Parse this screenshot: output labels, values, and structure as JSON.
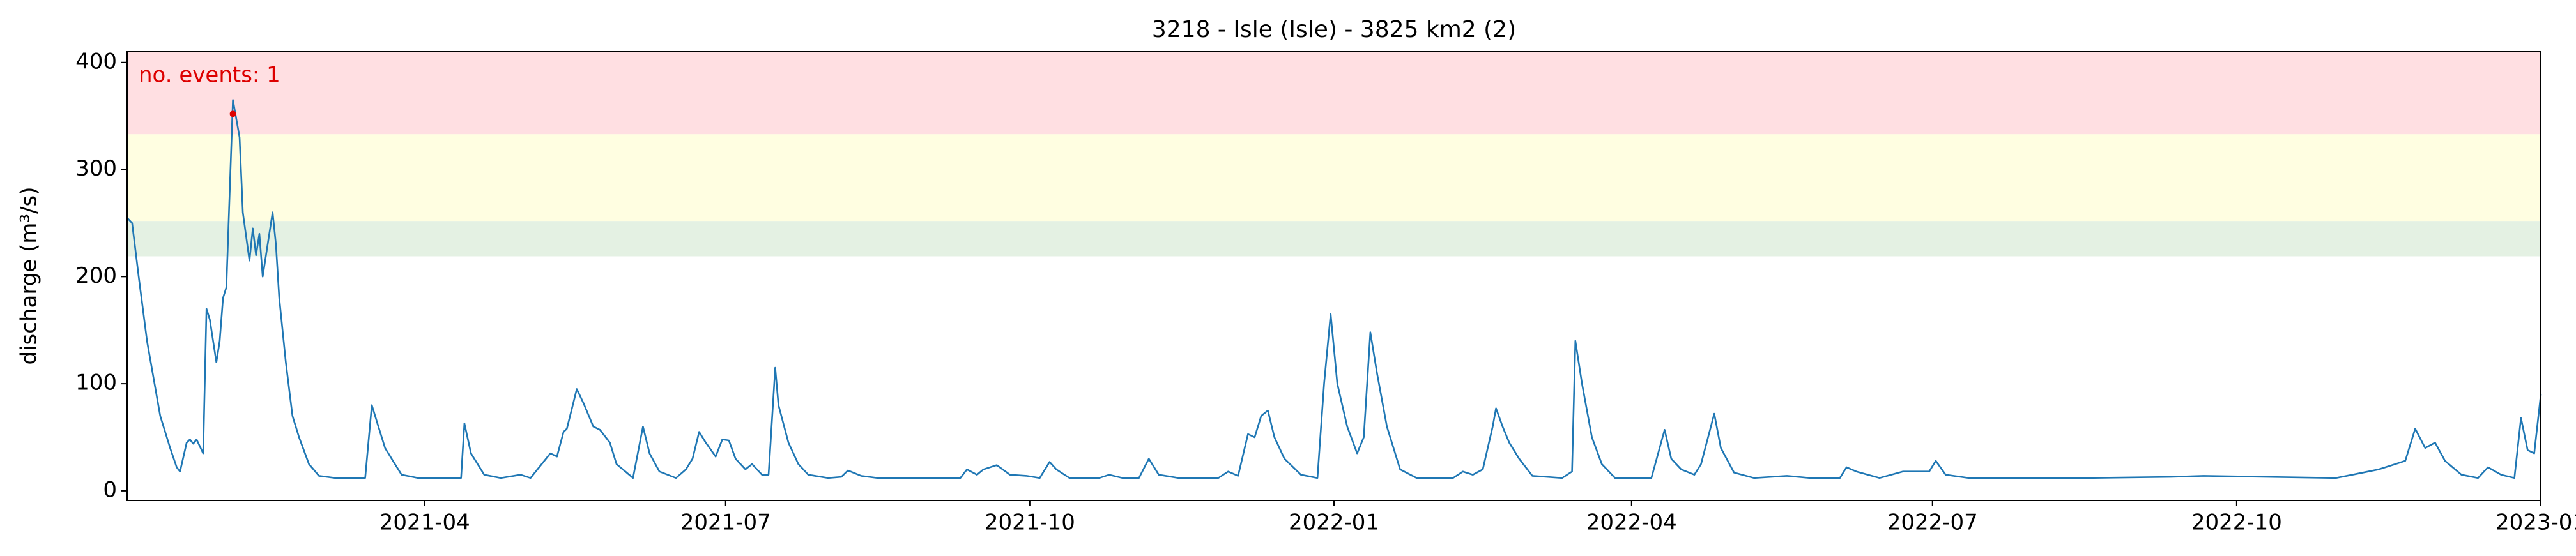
{
  "chart_data": {
    "type": "line",
    "title": "3218 - Isle (Isle) - 3825 km2 (2)",
    "y_label": "discharge (m³/s)",
    "annotation": "no. events: 1",
    "annotation_color": "#dd0000",
    "xlim": [
      0,
      730
    ],
    "xticks": [
      {
        "value": 90,
        "label": "2021-04"
      },
      {
        "value": 181,
        "label": "2021-07"
      },
      {
        "value": 273,
        "label": "2021-10"
      },
      {
        "value": 365,
        "label": "2022-01"
      },
      {
        "value": 455,
        "label": "2022-04"
      },
      {
        "value": 546,
        "label": "2022-07"
      },
      {
        "value": 638,
        "label": "2022-10"
      },
      {
        "value": 730,
        "label": "2023-01"
      }
    ],
    "ylim": [
      -9,
      410
    ],
    "yticks": [
      0,
      100,
      200,
      300,
      400
    ],
    "bands": [
      {
        "range": [
          219,
          252
        ],
        "color": "#e4f1e3"
      },
      {
        "range": [
          252,
          333
        ],
        "color": "#fffee1"
      },
      {
        "range": [
          333,
          410
        ],
        "color": "#ffdfe2"
      }
    ],
    "events": {
      "x": [
        32
      ],
      "values": [
        352
      ],
      "color": "#dd0000"
    },
    "series": [
      {
        "color": "#1f77b4",
        "x": [
          0,
          1.5,
          3.5,
          6,
          10,
          13,
          15,
          16,
          18,
          19,
          20,
          21,
          23,
          24,
          25,
          27,
          28,
          29,
          30,
          32,
          34,
          35,
          37,
          38,
          39,
          40,
          41,
          44,
          45,
          46,
          48,
          50,
          52,
          55,
          58,
          63,
          72,
          74,
          76,
          78,
          81,
          83,
          88,
          101,
          102,
          104,
          108,
          113,
          119,
          122,
          128,
          130,
          132,
          133,
          136,
          138,
          141,
          143,
          146,
          148,
          153,
          156,
          158,
          161,
          166,
          169,
          171,
          173,
          175,
          178,
          180,
          182,
          184,
          187,
          189,
          192,
          194,
          196,
          197,
          200,
          203,
          206,
          212,
          216,
          218,
          222,
          227,
          252,
          254,
          257,
          259,
          263,
          267,
          272,
          276,
          279,
          281,
          285,
          294,
          297,
          301,
          306,
          309,
          312,
          318,
          330,
          333,
          336,
          339,
          341,
          343,
          345,
          347,
          350,
          355,
          360,
          362,
          364,
          366,
          369,
          372,
          374,
          376,
          378,
          381,
          385,
          390,
          401,
          404,
          407,
          410,
          413,
          414,
          416,
          418,
          421,
          425,
          434,
          437,
          438,
          440,
          443,
          446,
          450,
          461,
          465,
          467,
          470,
          474,
          476,
          480,
          482,
          486,
          492,
          502,
          509,
          518,
          520,
          523,
          530,
          537,
          545,
          547,
          550,
          557,
          593,
          618,
          628,
          668,
          673,
          681,
          686,
          689,
          692,
          695,
          698,
          701,
          706,
          711,
          714,
          718,
          722,
          724,
          726,
          728,
          730
        ],
        "values": [
          255,
          250,
          200,
          140,
          70,
          40,
          22,
          18,
          45,
          48,
          44,
          48,
          35,
          170,
          160,
          120,
          140,
          180,
          190,
          365,
          330,
          260,
          215,
          245,
          220,
          240,
          200,
          260,
          230,
          180,
          120,
          70,
          50,
          25,
          14,
          12,
          12,
          80,
          60,
          40,
          25,
          15,
          12,
          12,
          63,
          35,
          15,
          12,
          15,
          12,
          35,
          32,
          55,
          58,
          95,
          82,
          60,
          57,
          45,
          25,
          12,
          60,
          35,
          18,
          12,
          20,
          30,
          55,
          45,
          32,
          48,
          47,
          30,
          20,
          25,
          15,
          15,
          115,
          80,
          45,
          25,
          15,
          12,
          13,
          19,
          14,
          12,
          12,
          20,
          15,
          20,
          24,
          15,
          14,
          12,
          27,
          20,
          12,
          12,
          15,
          12,
          12,
          30,
          15,
          12,
          12,
          18,
          14,
          53,
          50,
          70,
          75,
          50,
          30,
          15,
          12,
          100,
          165,
          100,
          60,
          35,
          50,
          148,
          110,
          60,
          20,
          12,
          12,
          18,
          15,
          20,
          60,
          77,
          60,
          45,
          30,
          14,
          12,
          18,
          140,
          100,
          50,
          25,
          12,
          12,
          57,
          30,
          20,
          15,
          25,
          72,
          40,
          17,
          12,
          14,
          12,
          12,
          22,
          18,
          12,
          18,
          18,
          28,
          15,
          12,
          12,
          13,
          14,
          12,
          15,
          20,
          25,
          28,
          58,
          40,
          45,
          28,
          15,
          12,
          22,
          15,
          12,
          68,
          38,
          35,
          90
        ]
      }
    ]
  }
}
